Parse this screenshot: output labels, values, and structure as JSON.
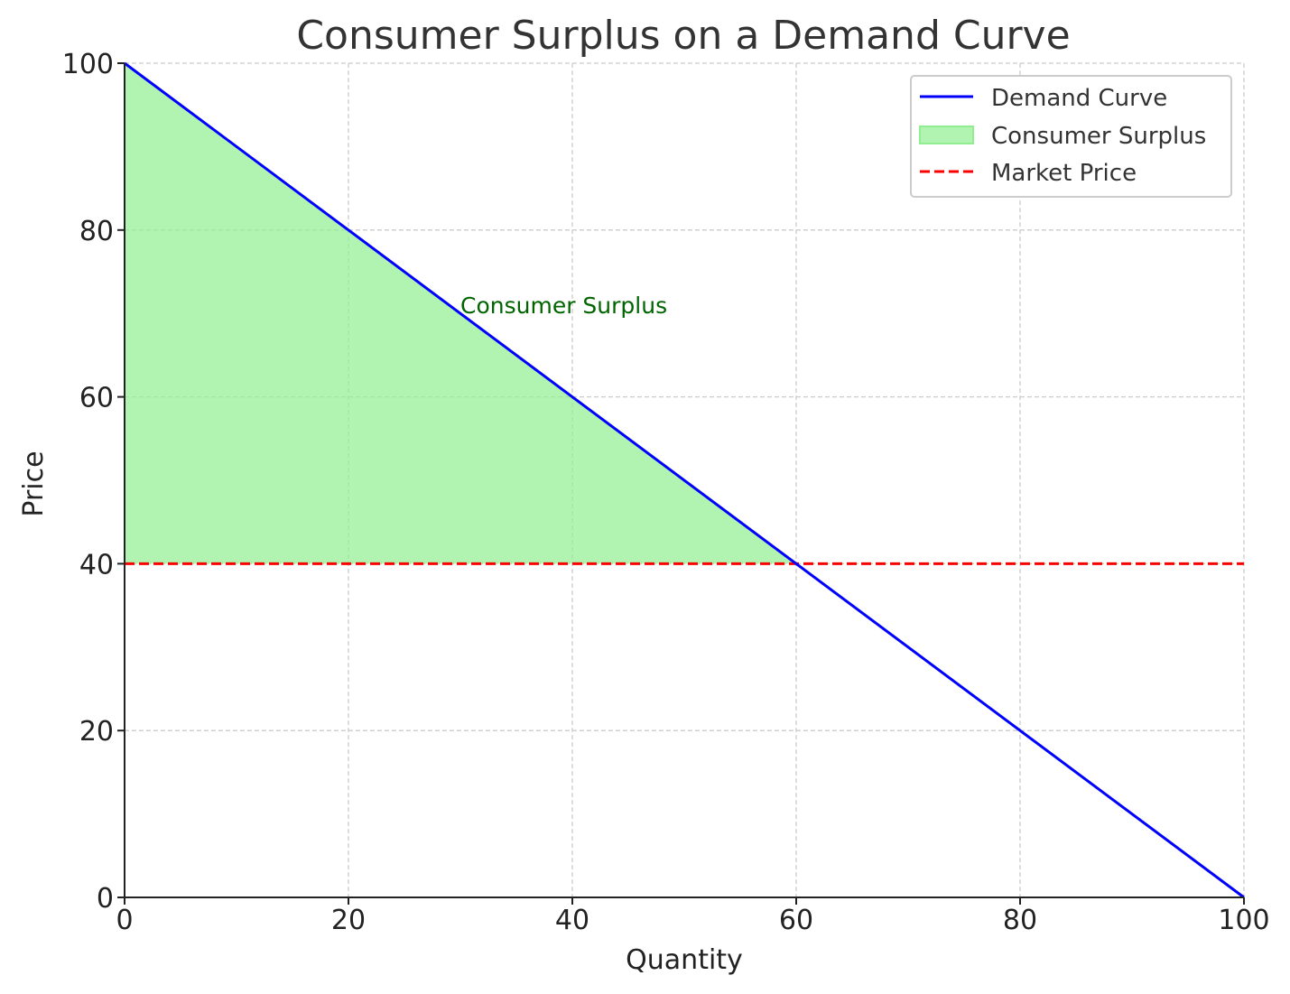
{
  "chart_data": {
    "type": "line",
    "title": "Consumer Surplus on a Demand Curve",
    "xlabel": "Quantity",
    "ylabel": "Price",
    "xlim": [
      0,
      100
    ],
    "ylim": [
      0,
      100
    ],
    "xticks": [
      0,
      20,
      40,
      60,
      80,
      100
    ],
    "yticks": [
      0,
      20,
      40,
      60,
      80,
      100
    ],
    "xtick_labels": [
      "0",
      "20",
      "40",
      "60",
      "80",
      "100"
    ],
    "ytick_labels": [
      "0",
      "20",
      "40",
      "60",
      "80",
      "100"
    ],
    "grid": true,
    "legend_position": "top-right",
    "series": [
      {
        "name": "Demand Curve",
        "kind": "line",
        "style": "solid",
        "color": "#0000ff",
        "x": [
          0,
          100
        ],
        "y": [
          100,
          0
        ]
      },
      {
        "name": "Consumer Surplus",
        "kind": "area",
        "color": "#90ee90",
        "x": [
          0,
          60
        ],
        "y_upper": [
          100,
          40
        ],
        "y_lower": [
          40,
          40
        ]
      },
      {
        "name": "Market Price",
        "kind": "hline",
        "style": "dashed",
        "color": "#ff0000",
        "y": 40
      }
    ],
    "annotations": [
      {
        "text": "Consumer Surplus",
        "x": 30,
        "y": 70,
        "color": "#006400"
      }
    ]
  }
}
